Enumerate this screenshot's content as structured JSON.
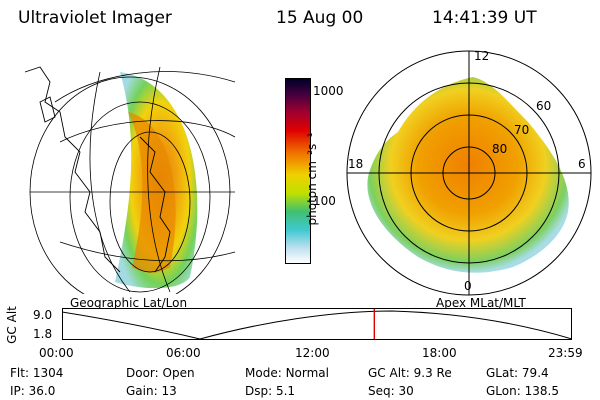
{
  "header": {
    "instrument": "Ultraviolet Imager",
    "date": "15 Aug 00",
    "time": "14:41:39 UT"
  },
  "colorbar": {
    "unit_label": "photon cm⁻²s⁻¹",
    "ticks": [
      "1000",
      "100"
    ]
  },
  "panels": {
    "left_caption": "Geographic Lat/Lon",
    "right_caption": "Apex MLat/MLT"
  },
  "polar": {
    "mlt_labels": [
      "12",
      "18",
      "6",
      "0"
    ],
    "lat_labels": [
      "60",
      "70",
      "80"
    ]
  },
  "altitude_strip": {
    "axis_label": "GC Alt",
    "y_ticks": [
      "9.0",
      "1.8"
    ],
    "x_ticks": [
      "00:00",
      "06:00",
      "12:00",
      "18:00",
      "23:59"
    ],
    "current_time_fraction": 0.6123
  },
  "status": {
    "flt_label": "Flt:",
    "flt_value": "1304",
    "door_label": "Door:",
    "door_value": "Open",
    "mode_label": "Mode:",
    "mode_value": "Normal",
    "gcalt_label": "GC Alt:",
    "gcalt_value": "9.3 Re",
    "glat_label": "GLat:",
    "glat_value": "79.4",
    "ip_label": "IP:",
    "ip_value": "36.0",
    "gain_label": "Gain:",
    "gain_value": "13",
    "dsp_label": "Dsp:",
    "dsp_value": "5.1",
    "seq_label": "Seq:",
    "seq_value": "30",
    "glon_label": "GLon:",
    "glon_value": "138.5"
  },
  "colors": {
    "altitude_marker": "#e00000",
    "aurora_high": "#e07000",
    "aurora_mid": "#f0c000",
    "aurora_low": "#6ccf50"
  }
}
